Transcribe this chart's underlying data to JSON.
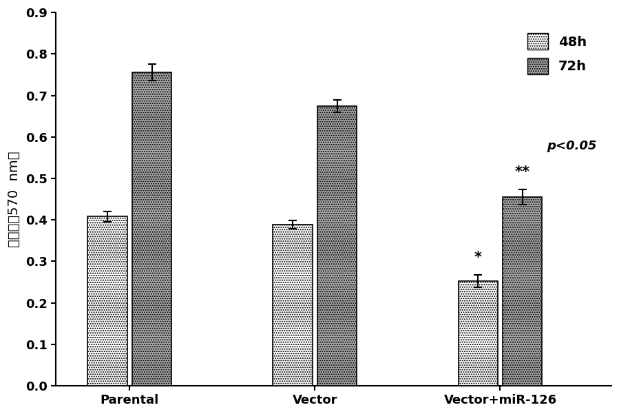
{
  "categories": [
    "Parental",
    "Vector",
    "Vector+miR-126"
  ],
  "values_48h": [
    0.408,
    0.388,
    0.252
  ],
  "values_72h": [
    0.755,
    0.675,
    0.455
  ],
  "errors_48h": [
    0.012,
    0.01,
    0.015
  ],
  "errors_72h": [
    0.02,
    0.015,
    0.018
  ],
  "color_48h": "#ffffff",
  "color_72h": "#aaaaaa",
  "hatch_48h": ".....",
  "hatch_72h": ".....",
  "bar_width": 0.32,
  "ylim": [
    0,
    0.9
  ],
  "yticks": [
    0,
    0.1,
    0.2,
    0.3,
    0.4,
    0.5,
    0.6,
    0.7,
    0.8,
    0.9
  ],
  "ylabel_chinese": "吸光值（570  nm）",
  "legend_48h": "48h",
  "legend_72h": "72h",
  "annotation_star1": "*",
  "annotation_star2": "**",
  "annotation_p": "p<0.05",
  "background_color": "#ffffff",
  "edgecolor": "#000000",
  "tick_fontsize": 13,
  "label_fontsize": 14
}
